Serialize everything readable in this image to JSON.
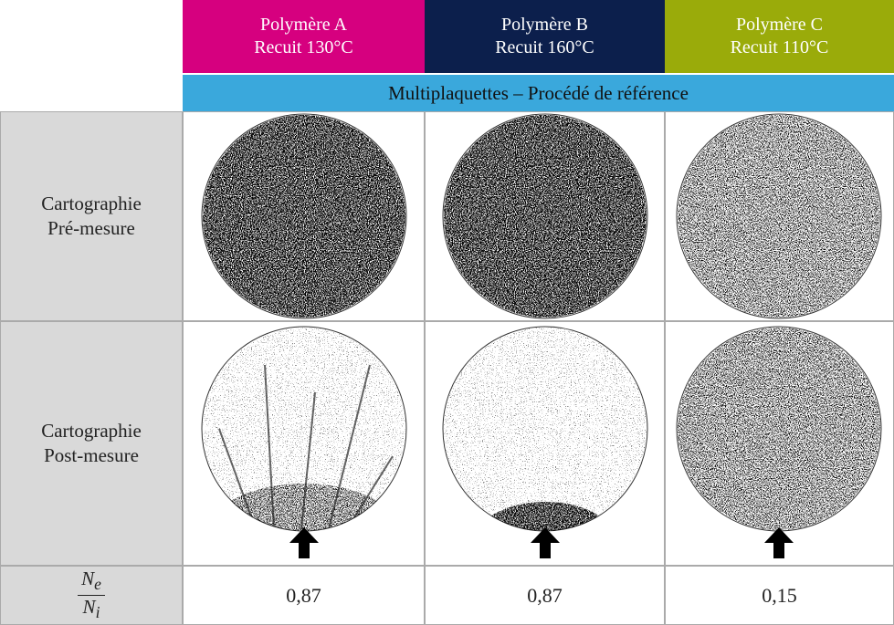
{
  "header": {
    "columns": [
      {
        "polymer": "Polymère A",
        "anneal": "Recuit 130°C"
      },
      {
        "polymer": "Polymère B",
        "anneal": "Recuit 160°C"
      },
      {
        "polymer": "Polymère C",
        "anneal": "Recuit 110°C"
      }
    ],
    "subheader": "Multiplaquettes – Procédé de référence"
  },
  "rows": [
    {
      "label_1": "Cartographie",
      "label_2": "Pré-mesure"
    },
    {
      "label_1": "Cartographie",
      "label_2": "Post-mesure"
    }
  ],
  "ratio": {
    "num_base": "N",
    "num_sub": "e",
    "den_base": "N",
    "den_sub": "i",
    "values": [
      "0,87",
      "0,87",
      "0,15"
    ]
  }
}
